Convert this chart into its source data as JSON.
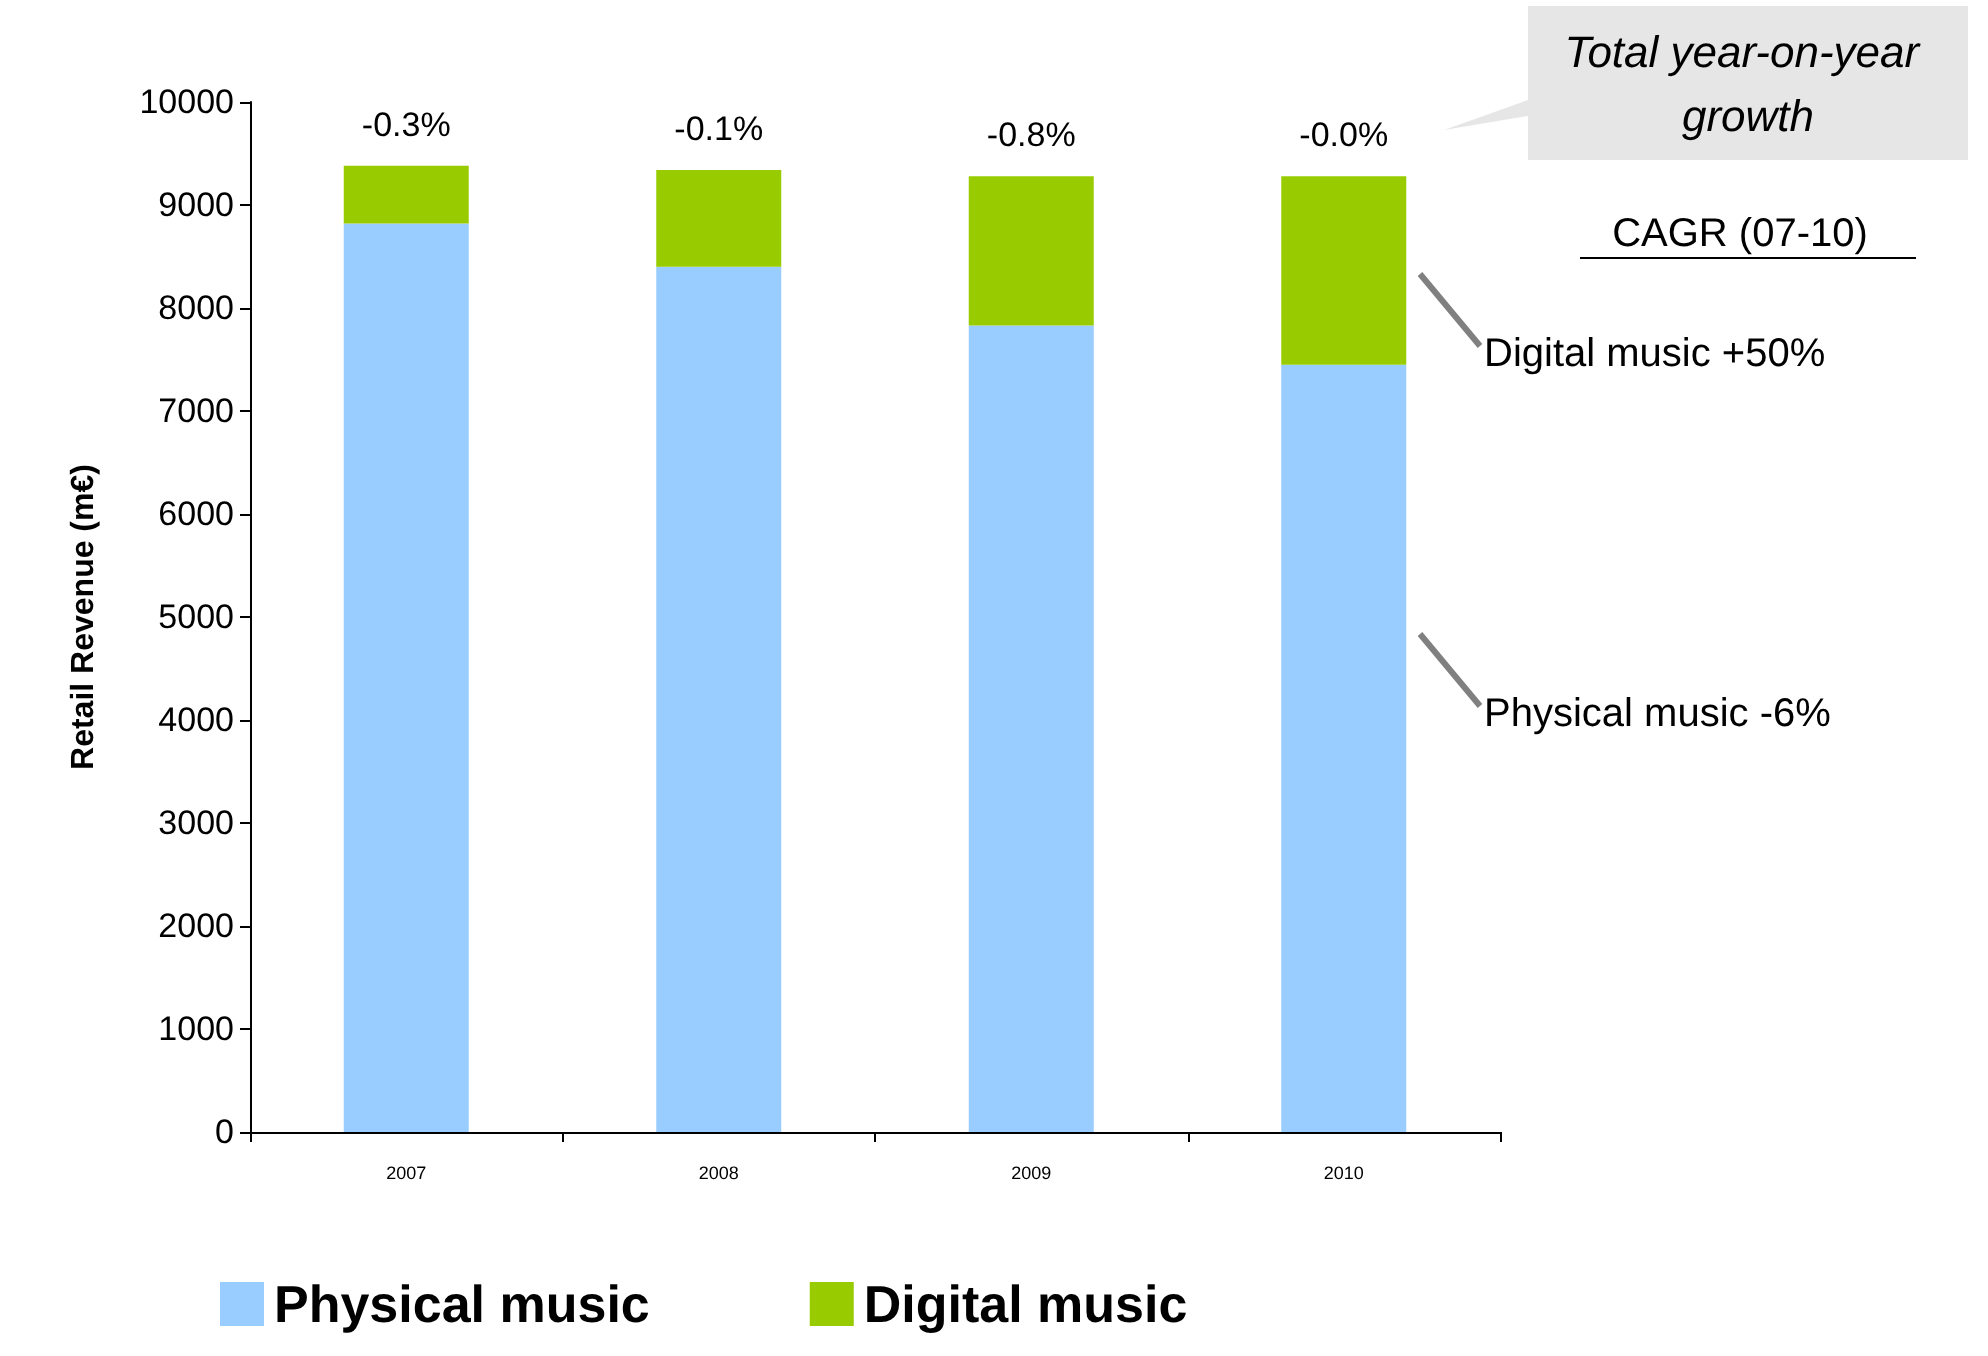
{
  "chart_data": {
    "type": "bar",
    "stacked": true,
    "ylabel": "Retail Revenue (m€)",
    "categories": [
      "2007",
      "2008",
      "2009",
      "2010"
    ],
    "series": [
      {
        "name": "Physical music",
        "color": "#99ccff",
        "values": [
          8820,
          8400,
          7830,
          7450
        ]
      },
      {
        "name": "Digital music",
        "color": "#99cc00",
        "values": [
          560,
          940,
          1450,
          1830
        ]
      }
    ],
    "ylim": [
      0,
      10000
    ],
    "yticks": [
      0,
      1000,
      2000,
      3000,
      4000,
      5000,
      6000,
      7000,
      8000,
      9000,
      10000
    ],
    "grid": false,
    "legend": "bottom left",
    "annotations": [
      {
        "text": "-0.3%",
        "x": "2007",
        "y": 9380
      },
      {
        "text": "-0.1%",
        "x": "2008",
        "y": 9340
      },
      {
        "text": "-0.8%",
        "x": "2009",
        "y": 9280
      },
      {
        "text": "-0.0%",
        "x": "2010",
        "y": 9280
      },
      "Total year-on-year growth",
      "CAGR (07-10)",
      "Digital music +50%",
      "Physical music -6%"
    ]
  }
}
